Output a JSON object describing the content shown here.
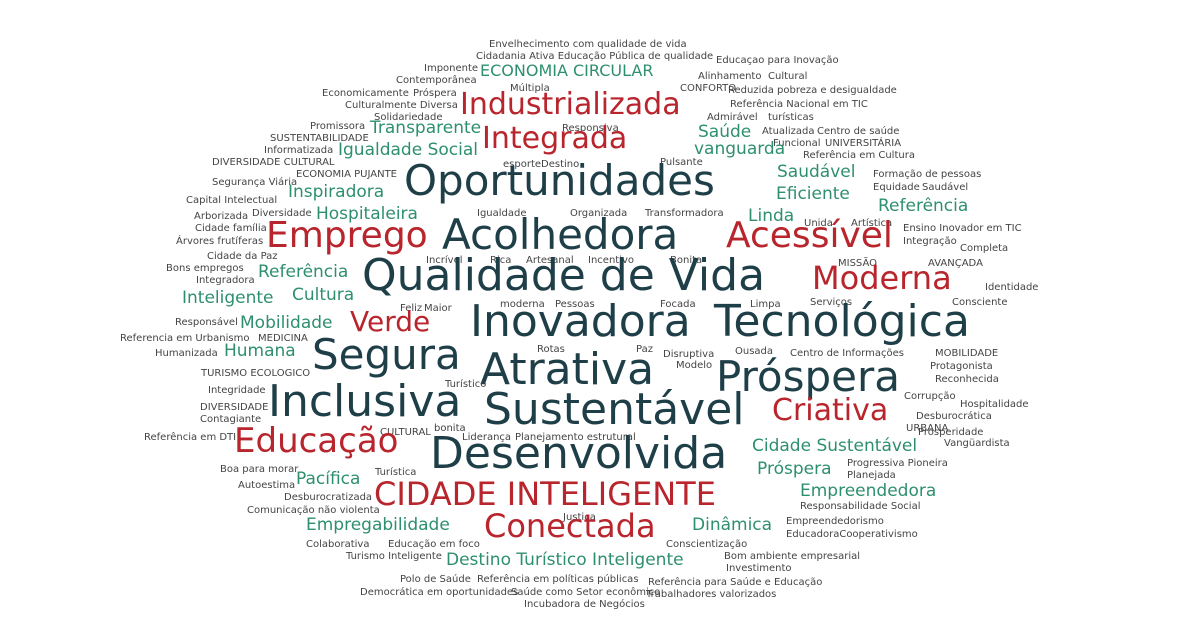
{
  "colors": {
    "dark": "#1f3f48",
    "red": "#b8252d",
    "green": "#2e8f70",
    "gray": "#444444"
  },
  "words": [
    "Envelhecimento com qualidade de vida",
    "Cidadania Ativa Educação Pública de qualidade",
    "Educaçao para Inovação",
    "Imponente",
    "ECONOMIA CIRCULAR",
    "Contemporânea",
    "Alinhamento",
    "Cultural",
    "Múltipla",
    "Economicamente",
    "Próspera",
    "CONFORTO",
    "Reduzida pobreza e desigualdade",
    "Culturalmente Diversa",
    "Industrializada",
    "Referência Nacional em TIC",
    "Solidariedade",
    "Admirável",
    "turísticas",
    "Promissora",
    "Transparente",
    "Responsiva",
    "Saúde",
    "Atualizada",
    "Centro de saúde",
    "SUSTENTABILIDADE",
    "Integrada",
    "Funcional",
    "UNIVERSITÁRIA",
    "Informatizada",
    "Igualdade Social",
    "vanguarda",
    "Referência em Cultura",
    "DIVERSIDADE CULTURAL",
    "esporte",
    "Destino",
    "Pulsante",
    "ECONOMIA PUJANTE",
    "Saudável",
    "Formação de pessoas",
    "Segurança Viária",
    "Oportunidades",
    "Equidade",
    "Saudável",
    "Inspiradora",
    "Eficiente",
    "Capital Intelectual",
    "Referência",
    "Arborizada",
    "Diversidade",
    "Hospitaleira",
    "Igualdade",
    "Organizada",
    "Transformadora",
    "Linda",
    "Cidade família",
    "Unida",
    "Artística",
    "Ensino Inovador em TIC",
    "Árvores frutíferas",
    "Emprego",
    "Acolhedora",
    "Acessível",
    "Integração",
    "Completa",
    "Cidade da Paz",
    "Incrível",
    "Rica",
    "Artesanal",
    "Incentivo",
    "Bonita",
    "MISSÃO",
    "AVANÇADA",
    "Bons empregos",
    "Referência",
    "Integradora",
    "Qualidade de Vida",
    "Moderna",
    "Identidade",
    "Inteligente",
    "Cultura",
    "Feliz",
    "Maior",
    "moderna",
    "Pessoas",
    "Focada",
    "Limpa",
    "Serviços",
    "Consciente",
    "Responsável",
    "Mobilidade",
    "Verde",
    "Inovadora",
    "Tecnológica",
    "Referencia em Urbanismo",
    "MEDICINA",
    "Humanizada",
    "Humana",
    "Segura",
    "Rotas",
    "Paz",
    "Disruptiva",
    "Ousada",
    "Centro de Informações",
    "MOBILIDADE",
    "TURISMO ECOLOGICO",
    "Modelo",
    "Protagonista",
    "Atrativa",
    "Próspera",
    "Integridade",
    "Turístico",
    "Reconhecida",
    "DIVERSIDADE",
    "Inclusiva",
    "Corrupção",
    "Hospitalidade",
    "Contagiante",
    "Sustentável",
    "Criativa",
    "Desburocrática",
    "CULTURAL",
    "bonita",
    "URBANA",
    "Prosperidade",
    "Referência em DTI",
    "Educação",
    "Liderança",
    "Planejamento estrutural",
    "Cidade Sustentável",
    "Vangüardista",
    "Desenvolvida",
    "Boa para morar",
    "Próspera",
    "Progressiva Pioneira",
    "Turística",
    "Pacífica",
    "Planejada",
    "Autoestima",
    "CIDADE INTELIGENTE",
    "Empreendedora",
    "Desburocratizada",
    "Responsabilidade Social",
    "Comunicação não violenta",
    "Justiça",
    "Empregabilidade",
    "Conectada",
    "Dinâmica",
    "Empreendedorismo",
    "Colaborativa",
    "Educação em foco",
    "Conscientização",
    "EducadoraCooperativismo",
    "Turismo Inteligente",
    "Destino Turístico Inteligente",
    "Bom ambiente empresarial",
    "Investimento",
    "Polo de Saúde",
    "Referência em políticas públicas",
    "Referência para Saúde e Educação",
    "Democrática em oportunidades",
    "Saúde como Setor econômico",
    "Trabalhadores valorizados",
    "Incubadora de Negócios"
  ]
}
